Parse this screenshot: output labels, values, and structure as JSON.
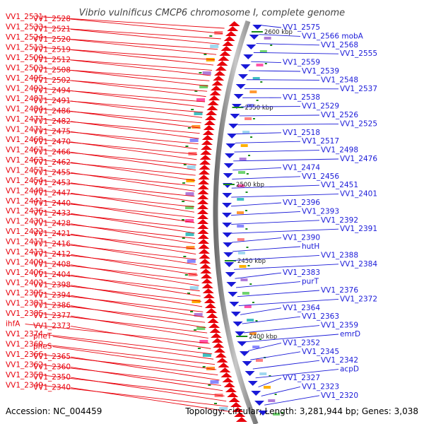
{
  "title": "Vibrio vulnificus CMCP6 chromosome I, complete genome",
  "accession": "Accession: NC_004459",
  "topology": "Topology: circular; Length: 3,281,944 bp; Genes: 3,038",
  "colors": {
    "forward": "#e8000b",
    "reverse": "#1a1ad8",
    "backbone": "#8c8c8c",
    "marker": "#1a8a1a"
  },
  "kbp_markers": [
    "2600 kbp",
    "2550 kbp",
    "2500 kbp",
    "2450 kbp",
    "2400 kbp"
  ],
  "left_labels": [
    "VV1_2531",
    "VV1_2528",
    "VV1_2533",
    "VV1_2521",
    "VV1_2524",
    "VV1_2520",
    "VV1_2513",
    "VV1_2519",
    "VV1_2509",
    "VV1_2512",
    "VV1_2503",
    "VV1_2508",
    "VV1_2495",
    "VV1_2502",
    "VV1_2492",
    "VV1_2494",
    "VV1_2487",
    "VV1_2491",
    "VV1_2484",
    "VV1_2486",
    "VV1_2477",
    "VV1_2482",
    "VV1_2471",
    "VV1_2475",
    "VV1_2468",
    "VV1_2470",
    "VV1_2467",
    "VV1_2466",
    "VV1_2463",
    "VV1_2462",
    "VV1_2457",
    "VV1_2455",
    "VV1_2454",
    "VV1_2453",
    "VV1_2448",
    "VV1_2447",
    "VV1_2441",
    "VV1_2440",
    "VV1_2436",
    "VV1_2433",
    "VV1_2430",
    "VV1_2428",
    "VV1_2422",
    "VV1_2421",
    "VV1_2417",
    "VV1_2416",
    "VV1_2413",
    "VV1_2412",
    "VV1_2409",
    "VV1_2408",
    "VV1_2406",
    "VV1_2404",
    "VV1_2402",
    "VV1_2398",
    "VV1_2395",
    "VV1_2394",
    "VV1_2387",
    "VV1_2386",
    "VV1_2385",
    "VV1_2377",
    "ihfA",
    "VV1_2373",
    "VV1_2374",
    "pheT",
    "VV1_2369",
    "pheS",
    "VV1_2366",
    "VV1_2365",
    "VV1_2362",
    "VV1_2360",
    "VV1_2358",
    "VV1_2350",
    "VV1_2349",
    "VV1_2340"
  ],
  "right_labels": [
    "VV1_2575",
    "VV1_2566 mobA",
    "VV1_2568",
    "VV1_2555",
    "VV1_2559",
    "VV1_2539",
    "VV1_2548",
    "VV1_2537",
    "VV1_2538",
    "VV1_2529",
    "VV1_2526",
    "VV1_2525",
    "VV1_2518",
    "VV1_2517",
    "VV1_2498",
    "VV1_2476",
    "VV1_2474",
    "VV1_2456",
    "VV1_2451",
    "VV1_2401",
    "VV1_2396",
    "VV1_2393",
    "VV1_2392",
    "VV1_2391",
    "VV1_2390",
    "hutH",
    "VV1_2388",
    "VV1_2384",
    "VV1_2383",
    "purT",
    "VV1_2376",
    "VV1_2372",
    "VV1_2364",
    "VV1_2363",
    "VV1_2359",
    "emrD",
    "VV1_2352",
    "VV1_2345",
    "VV1_2342",
    "acpD",
    "VV1_2327",
    "VV1_2323",
    "VV1_2320"
  ]
}
